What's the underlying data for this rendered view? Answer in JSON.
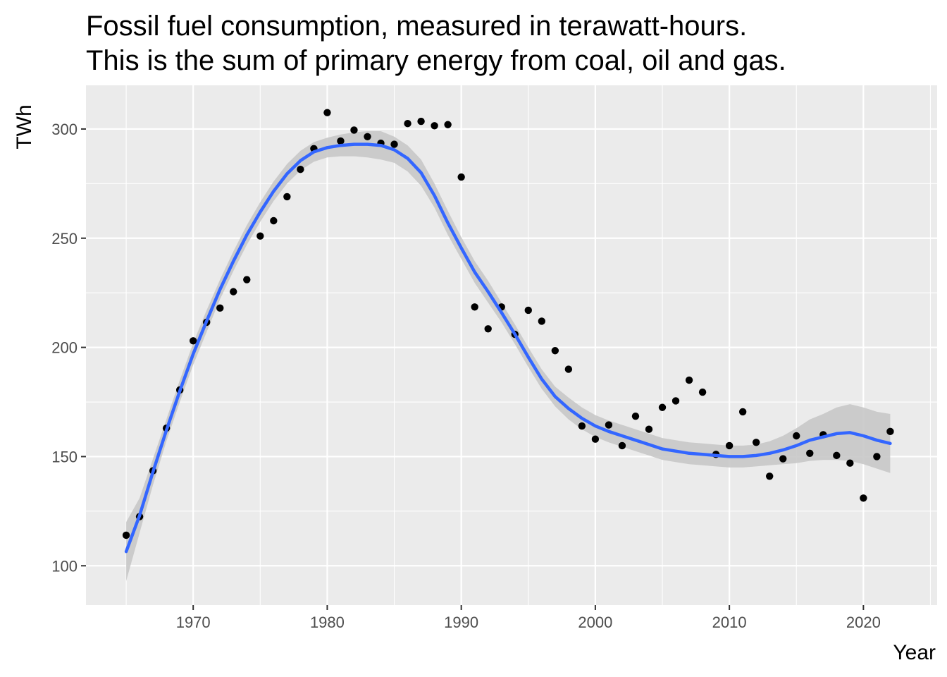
{
  "chart_data": {
    "type": "scatter",
    "title": [
      "Fossil fuel consumption, measured in terawatt-hours.",
      "This is the sum of primary energy from coal, oil and gas."
    ],
    "xlabel": "Year",
    "ylabel": "TWh",
    "xlim": [
      1962,
      2025.5
    ],
    "ylim": [
      82,
      320
    ],
    "xticks": [
      1970,
      1980,
      1990,
      2000,
      2010,
      2020
    ],
    "yticks": [
      100,
      150,
      200,
      250,
      300
    ],
    "grid": true,
    "legend": "none",
    "colors": {
      "panel": "#ebebeb",
      "grid": "#ffffff",
      "points": "#000000",
      "smooth_line": "#3366ff",
      "ribbon": "#c8c8c8"
    },
    "points": {
      "x": [
        1965,
        1966,
        1967,
        1968,
        1969,
        1970,
        1971,
        1972,
        1973,
        1974,
        1975,
        1976,
        1977,
        1978,
        1979,
        1980,
        1981,
        1982,
        1983,
        1984,
        1985,
        1986,
        1987,
        1988,
        1989,
        1990,
        1991,
        1992,
        1993,
        1994,
        1995,
        1996,
        1997,
        1998,
        1999,
        2000,
        2001,
        2002,
        2003,
        2004,
        2005,
        2006,
        2007,
        2008,
        2009,
        2010,
        2011,
        2012,
        2013,
        2014,
        2015,
        2016,
        2017,
        2018,
        2019,
        2020,
        2021,
        2022
      ],
      "y": [
        114,
        122.5,
        143.5,
        163,
        180.5,
        203,
        211.5,
        218,
        225.5,
        231,
        251,
        258,
        269,
        281.5,
        291,
        307.5,
        294.5,
        299.5,
        296.5,
        293.5,
        293,
        302.5,
        303.5,
        301.5,
        302,
        278,
        218.5,
        208.5,
        218.5,
        206,
        217,
        212,
        198.5,
        190,
        164,
        158,
        164.5,
        155,
        168.5,
        162.5,
        172.5,
        175.5,
        185,
        179.5,
        151,
        155,
        170.5,
        156.5,
        141,
        149,
        159.5,
        151.5,
        160,
        150.5,
        147,
        131,
        150,
        161.5
      ]
    },
    "smooth": {
      "x": [
        1965,
        1966,
        1967,
        1968,
        1969,
        1970,
        1971,
        1972,
        1973,
        1974,
        1975,
        1976,
        1977,
        1978,
        1979,
        1980,
        1981,
        1982,
        1983,
        1984,
        1985,
        1986,
        1987,
        1988,
        1989,
        1990,
        1991,
        1992,
        1993,
        1994,
        1995,
        1996,
        1997,
        1998,
        1999,
        2000,
        2001,
        2002,
        2003,
        2004,
        2005,
        2006,
        2007,
        2008,
        2009,
        2010,
        2011,
        2012,
        2013,
        2014,
        2015,
        2016,
        2017,
        2018,
        2019,
        2020,
        2021,
        2022
      ],
      "y": [
        106.5,
        123,
        143,
        162,
        180,
        197,
        212,
        226.5,
        239.5,
        251.5,
        262,
        271.5,
        279.5,
        285.5,
        289.5,
        291.5,
        292.5,
        293,
        293,
        292.5,
        290.5,
        286.5,
        280,
        269.5,
        257,
        245.5,
        234.5,
        225.5,
        216,
        206,
        195.5,
        185.5,
        177.5,
        172,
        167.5,
        164,
        161.5,
        159.5,
        157.5,
        155.5,
        153.5,
        152.5,
        151.5,
        151,
        150.5,
        150,
        150,
        150.5,
        151.5,
        153,
        155,
        157.5,
        159,
        160.5,
        161,
        159.5,
        157.5,
        156
      ],
      "lower": [
        93,
        115,
        137,
        157,
        175,
        192,
        207,
        222,
        235,
        247,
        257.5,
        267,
        275,
        281,
        285,
        287,
        287.5,
        287.5,
        287,
        286,
        284.5,
        280.5,
        274,
        264,
        251.5,
        240.5,
        229.5,
        220.5,
        211.5,
        201.5,
        191,
        181,
        173,
        167,
        162.5,
        159,
        156.5,
        154.5,
        152.5,
        150.5,
        148.5,
        147.5,
        146.5,
        146,
        145.5,
        145,
        145,
        145.5,
        146,
        146.5,
        147,
        148,
        148.5,
        148.5,
        148,
        146.5,
        144.5,
        142.5
      ],
      "upper": [
        120,
        131,
        149,
        167,
        185,
        202,
        217,
        231,
        244,
        256,
        266.5,
        276,
        284,
        290,
        294,
        296,
        297.5,
        298.5,
        299,
        299,
        296.5,
        292.5,
        286,
        275,
        262.5,
        250.5,
        239.5,
        230.5,
        220.5,
        210.5,
        200,
        190,
        182,
        177,
        172.5,
        169,
        166.5,
        164.5,
        162.5,
        160.5,
        158.5,
        157.5,
        156.5,
        156,
        155.5,
        155,
        155,
        155.5,
        157,
        159.5,
        163,
        167,
        169.5,
        172.5,
        174,
        172.5,
        170.5,
        169.5
      ]
    }
  }
}
